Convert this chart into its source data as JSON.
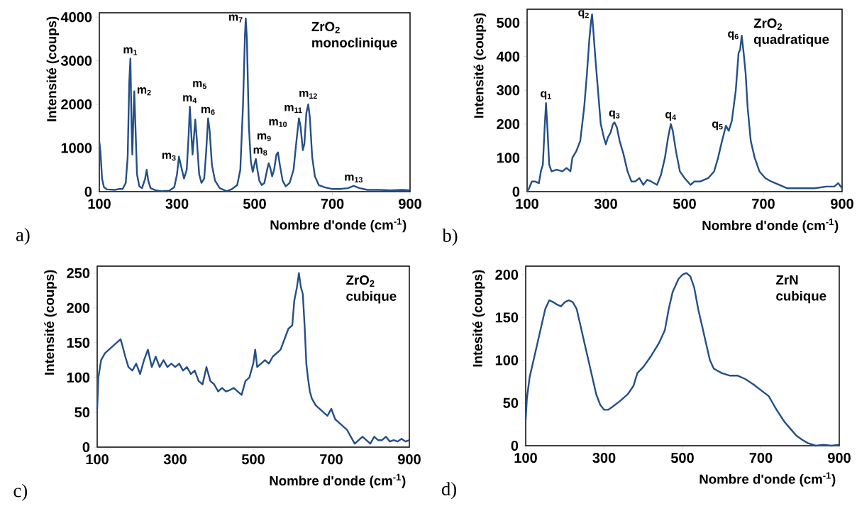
{
  "chart_data": [
    {
      "type": "line",
      "title": "ZrO$_{2}$",
      "subtitle": "monoclinique",
      "xlabel": "Nombre d'onde (cm$^{-1}$)",
      "ylabel": "Intensité (coups)",
      "color": "#244f87",
      "xlim": [
        100,
        900
      ],
      "xticks": [
        100,
        300,
        500,
        700,
        900
      ],
      "ylim": [
        0,
        4100
      ],
      "yticks": [
        0,
        1000,
        2000,
        3000,
        4000
      ],
      "x": [
        100,
        103,
        107,
        112,
        120,
        140,
        150,
        160,
        168,
        173,
        177,
        180,
        183,
        185,
        188,
        190,
        193,
        197,
        203,
        210,
        218,
        222,
        226,
        232,
        245,
        260,
        280,
        293,
        300,
        305,
        310,
        318,
        325,
        330,
        333,
        337,
        340,
        344,
        347,
        351,
        357,
        363,
        370,
        375,
        380,
        384,
        390,
        398,
        410,
        428,
        440,
        455,
        463,
        470,
        475,
        477,
        480,
        485,
        490,
        495,
        500,
        503,
        507,
        512,
        518,
        525,
        532,
        536,
        540,
        545,
        550,
        556,
        560,
        565,
        572,
        580,
        590,
        600,
        608,
        614,
        618,
        624,
        628,
        633,
        638,
        642,
        648,
        655,
        665,
        680,
        700,
        720,
        740,
        755,
        770,
        790,
        820,
        850,
        880,
        900
      ],
      "values": [
        1150,
        900,
        300,
        100,
        50,
        40,
        60,
        60,
        200,
        800,
        2500,
        3050,
        1500,
        850,
        1800,
        2300,
        1500,
        400,
        120,
        80,
        300,
        500,
        250,
        80,
        30,
        10,
        20,
        100,
        400,
        800,
        600,
        300,
        500,
        1300,
        1950,
        1300,
        850,
        1300,
        1650,
        1200,
        400,
        200,
        300,
        900,
        1680,
        1400,
        600,
        250,
        80,
        10,
        50,
        150,
        500,
        2000,
        3600,
        3970,
        3500,
        1500,
        700,
        450,
        650,
        750,
        500,
        250,
        150,
        200,
        500,
        650,
        550,
        350,
        500,
        850,
        900,
        600,
        250,
        120,
        200,
        500,
        1200,
        1680,
        1500,
        950,
        1100,
        1800,
        2000,
        1700,
        800,
        350,
        150,
        100,
        60,
        60,
        80,
        130,
        80,
        40,
        40,
        30,
        40,
        30
      ],
      "annotations": [
        "a)",
        {
          "text": "m$_{1}$",
          "x": 180,
          "y": 3050
        },
        {
          "text": "m$_{2}$",
          "x": 190,
          "y": 2300
        },
        {
          "text": "m$_{3}$",
          "x": 305,
          "y": 800
        },
        {
          "text": "m$_{4}$",
          "x": 333,
          "y": 1950
        },
        {
          "text": "m$_{5}$",
          "x": 347,
          "y": 1650
        },
        {
          "text": "m$_{6}$",
          "x": 380,
          "y": 1680
        },
        {
          "text": "m$_{7}$",
          "x": 477,
          "y": 3970
        },
        {
          "text": "m$_{8}$",
          "x": 503,
          "y": 750
        },
        {
          "text": "m$_{9}$",
          "x": 536,
          "y": 650
        },
        {
          "text": "m$_{10}$",
          "x": 560,
          "y": 900
        },
        {
          "text": "m$_{11}$",
          "x": 614,
          "y": 1680
        },
        {
          "text": "m$_{12}$",
          "x": 638,
          "y": 2000
        },
        {
          "text": "m$_{13}$",
          "x": 755,
          "y": 130
        }
      ]
    },
    {
      "type": "line",
      "title": "ZrO$_{2}$",
      "subtitle": "quadratique",
      "xlabel": "Nombre d'onde (cm$^{-1}$)",
      "ylabel": "Intensité (coups)",
      "color": "#244f87",
      "xlim": [
        100,
        900
      ],
      "xticks": [
        100,
        300,
        500,
        700,
        900
      ],
      "ylim": [
        0,
        540
      ],
      "yticks": [
        0,
        100,
        200,
        300,
        400,
        500
      ],
      "x": [
        100,
        105,
        112,
        120,
        130,
        135,
        140,
        145,
        148,
        152,
        156,
        162,
        175,
        190,
        200,
        210,
        215,
        225,
        235,
        245,
        252,
        258,
        262,
        265,
        268,
        273,
        280,
        287,
        295,
        300,
        305,
        312,
        318,
        322,
        328,
        335,
        345,
        355,
        365,
        375,
        385,
        395,
        405,
        415,
        430,
        440,
        450,
        458,
        465,
        470,
        478,
        488,
        500,
        515,
        525,
        540,
        560,
        575,
        585,
        595,
        605,
        612,
        620,
        630,
        637,
        641,
        645,
        650,
        655,
        660,
        668,
        678,
        690,
        705,
        720,
        740,
        760,
        780,
        800,
        830,
        860,
        880,
        890,
        900
      ],
      "values": [
        0,
        10,
        30,
        30,
        25,
        60,
        80,
        200,
        262,
        180,
        80,
        60,
        65,
        60,
        70,
        60,
        100,
        120,
        150,
        250,
        350,
        450,
        500,
        525,
        480,
        400,
        300,
        200,
        160,
        140,
        160,
        175,
        200,
        205,
        190,
        150,
        110,
        60,
        30,
        30,
        40,
        20,
        35,
        30,
        20,
        50,
        100,
        160,
        200,
        180,
        120,
        60,
        40,
        20,
        30,
        30,
        40,
        60,
        100,
        150,
        195,
        180,
        210,
        300,
        410,
        420,
        462,
        410,
        350,
        250,
        150,
        100,
        60,
        40,
        30,
        20,
        10,
        10,
        10,
        10,
        15,
        15,
        25,
        10
      ],
      "annotations": [
        "b)",
        {
          "text": "q$_{1}$",
          "x": 148,
          "y": 262
        },
        {
          "text": "q$_{2}$",
          "x": 265,
          "y": 525
        },
        {
          "text": "q$_{3}$",
          "x": 322,
          "y": 205
        },
        {
          "text": "q$_{4}$",
          "x": 465,
          "y": 200
        },
        {
          "text": "q$_{5}$",
          "x": 605,
          "y": 195
        },
        {
          "text": "q$_{6}$",
          "x": 645,
          "y": 462
        }
      ]
    },
    {
      "type": "line",
      "title": "ZrO$_{2}$",
      "subtitle": "cubique",
      "xlabel": "Nombre d'onde (cm$^{-1}$)",
      "ylabel": "Intensité (coups)",
      "color": "#244f87",
      "xlim": [
        100,
        900
      ],
      "xticks": [
        100,
        300,
        500,
        700,
        900
      ],
      "ylim": [
        0,
        260
      ],
      "yticks": [
        0,
        50,
        100,
        150,
        200,
        250
      ],
      "x": [
        100,
        103,
        110,
        120,
        130,
        140,
        150,
        160,
        165,
        172,
        180,
        190,
        200,
        210,
        220,
        230,
        240,
        250,
        260,
        270,
        280,
        290,
        300,
        310,
        320,
        330,
        340,
        350,
        360,
        370,
        380,
        390,
        400,
        410,
        420,
        430,
        440,
        450,
        460,
        470,
        480,
        490,
        500,
        505,
        510,
        520,
        530,
        540,
        550,
        560,
        570,
        580,
        590,
        600,
        605,
        612,
        617,
        622,
        627,
        632,
        636,
        640,
        645,
        650,
        660,
        670,
        680,
        690,
        700,
        710,
        720,
        730,
        740,
        750,
        760,
        770,
        780,
        790,
        800,
        810,
        820,
        830,
        840,
        850,
        860,
        870,
        880,
        890,
        900
      ],
      "values": [
        55,
        100,
        125,
        135,
        140,
        145,
        150,
        155,
        145,
        130,
        115,
        110,
        120,
        105,
        125,
        140,
        115,
        130,
        115,
        125,
        115,
        120,
        115,
        120,
        110,
        115,
        105,
        110,
        95,
        90,
        115,
        95,
        90,
        80,
        85,
        80,
        82,
        85,
        80,
        75,
        95,
        100,
        120,
        140,
        115,
        120,
        125,
        120,
        130,
        135,
        140,
        155,
        170,
        175,
        210,
        230,
        250,
        230,
        220,
        170,
        120,
        100,
        80,
        70,
        60,
        55,
        50,
        45,
        55,
        40,
        35,
        30,
        25,
        15,
        5,
        10,
        15,
        10,
        5,
        15,
        10,
        10,
        15,
        8,
        10,
        8,
        12,
        8,
        10
      ],
      "annotations": [
        "c)"
      ]
    },
    {
      "type": "line",
      "title": "ZrN",
      "subtitle": "cubique",
      "xlabel": "Nombre d'onde (cm$^{-1}$)",
      "ylabel": "Intesité (coups)",
      "color": "#244f87",
      "xlim": [
        100,
        900
      ],
      "xticks": [
        100,
        300,
        500,
        700,
        900
      ],
      "ylim": [
        0,
        210
      ],
      "yticks": [
        0,
        50,
        100,
        150,
        200
      ],
      "x": [
        100,
        103,
        110,
        120,
        130,
        140,
        150,
        160,
        170,
        180,
        190,
        200,
        210,
        220,
        230,
        240,
        250,
        260,
        270,
        280,
        290,
        300,
        310,
        320,
        340,
        360,
        375,
        385,
        400,
        420,
        440,
        455,
        465,
        475,
        490,
        500,
        510,
        520,
        530,
        540,
        550,
        560,
        570,
        580,
        600,
        620,
        640,
        660,
        680,
        700,
        720,
        730,
        740,
        750,
        760,
        775,
        790,
        805,
        820,
        840,
        860,
        880,
        900
      ],
      "values": [
        30,
        55,
        80,
        100,
        120,
        140,
        160,
        170,
        168,
        165,
        163,
        168,
        170,
        168,
        160,
        140,
        120,
        100,
        80,
        60,
        48,
        42,
        42,
        45,
        52,
        60,
        70,
        85,
        92,
        105,
        120,
        135,
        160,
        180,
        195,
        200,
        202,
        198,
        185,
        160,
        140,
        120,
        100,
        90,
        85,
        82,
        82,
        78,
        72,
        65,
        58,
        50,
        42,
        35,
        28,
        20,
        12,
        7,
        3,
        0,
        1,
        0,
        1
      ],
      "annotations": [
        "d)"
      ]
    }
  ]
}
